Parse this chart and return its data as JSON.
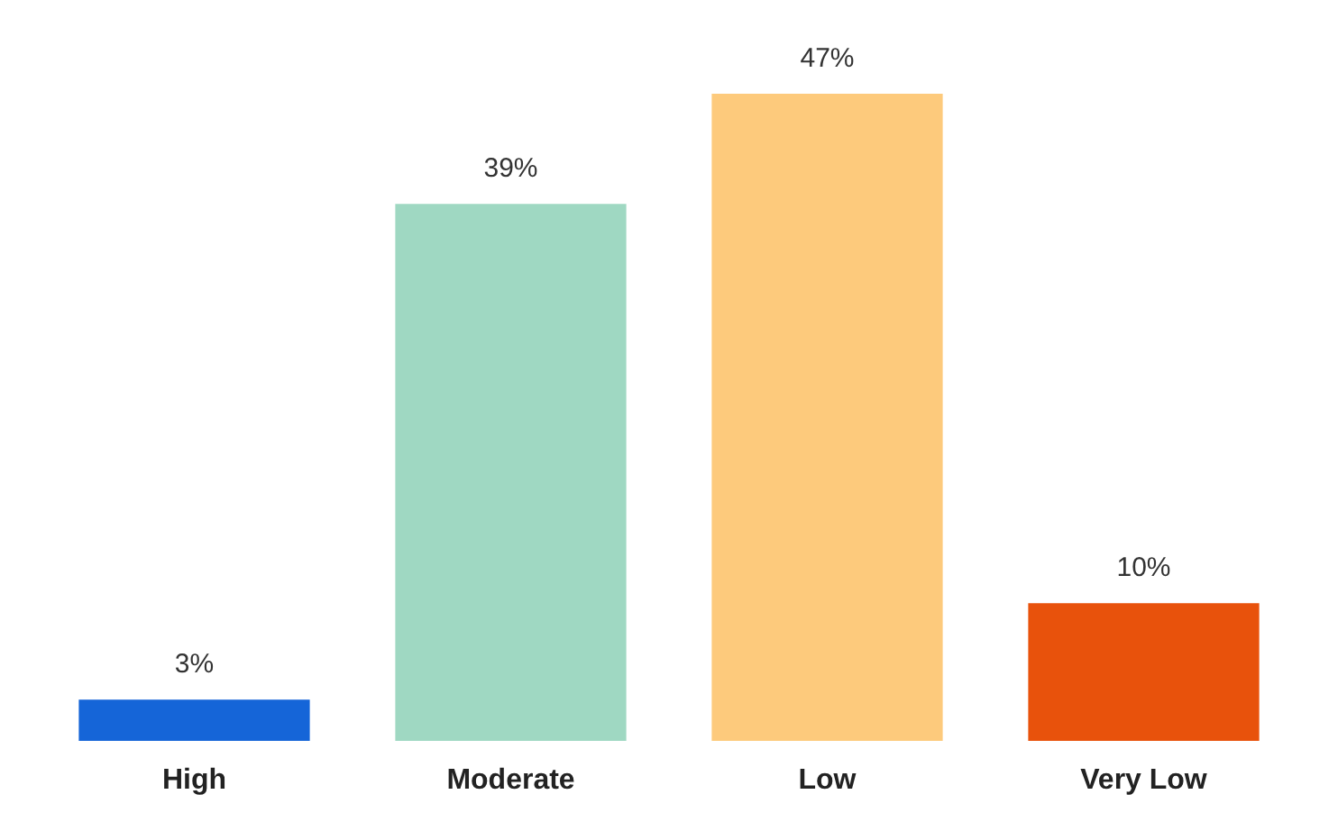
{
  "chart_data": {
    "type": "bar",
    "categories": [
      "High",
      "Moderate",
      "Low",
      "Very Low"
    ],
    "values": [
      3,
      39,
      47,
      10
    ],
    "value_labels": [
      "3%",
      "39%",
      "47%",
      "10%"
    ],
    "colors": [
      "#1565d8",
      "#9fd8c2",
      "#fdca7c",
      "#e8520c"
    ]
  }
}
